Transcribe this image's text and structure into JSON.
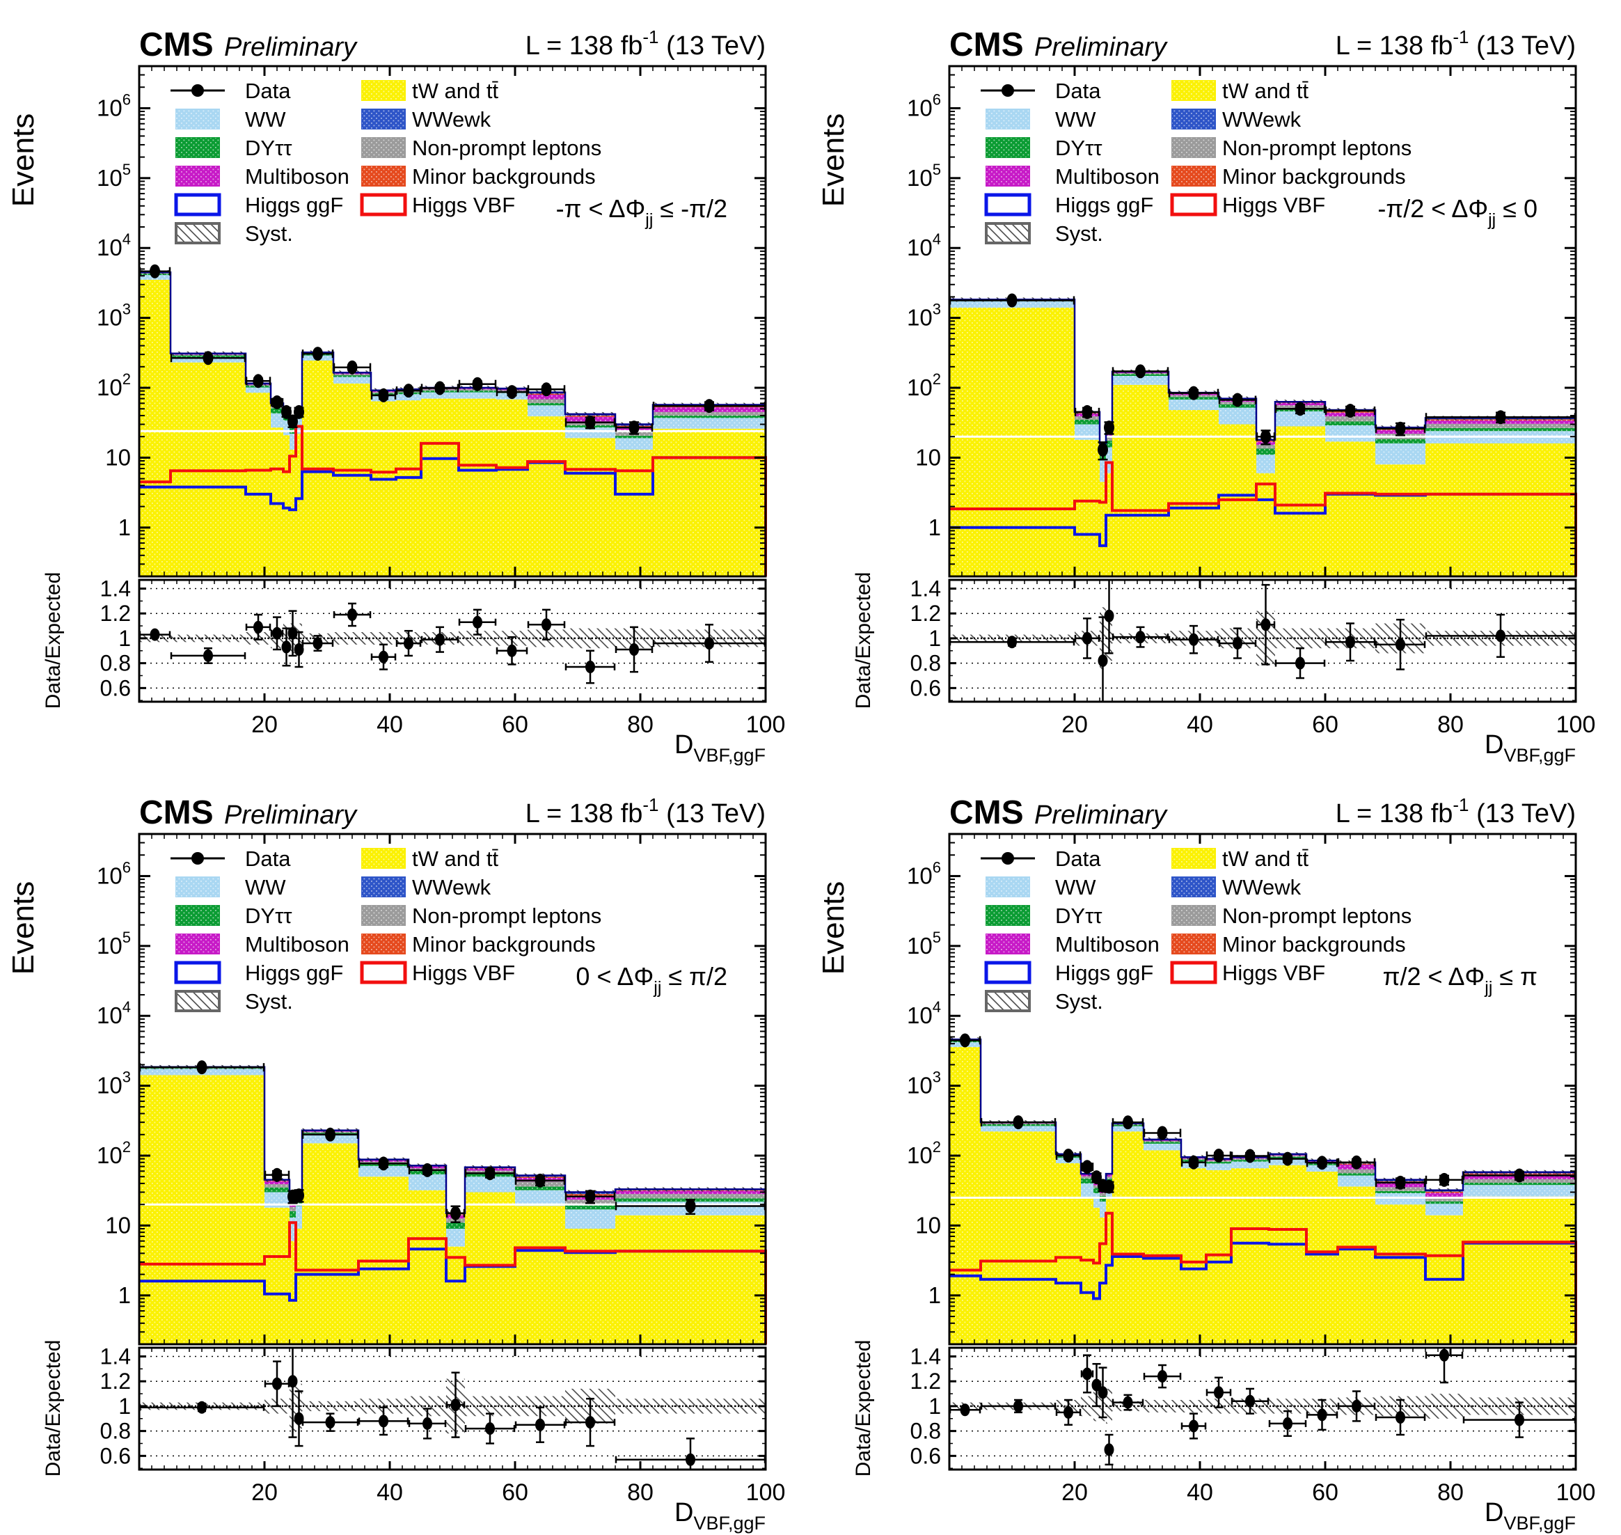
{
  "header": {
    "experiment": "CMS",
    "label": "Preliminary",
    "lumi_prefix": "L = 138 fb",
    "lumi_sup": "-1",
    "lumi_suffix": " (13 TeV)"
  },
  "axes": {
    "y_title_main": "Events",
    "y_title_ratio": "Data/Expected",
    "x_title_base": "D",
    "x_title_sub": "VBF,ggF",
    "x_ticks": [
      20,
      40,
      60,
      80,
      100
    ],
    "y_ticks": [
      {
        "v": 1,
        "t": "1"
      },
      {
        "v": 10,
        "t": "10"
      },
      {
        "v": 100,
        "t": "10",
        "e": "2"
      },
      {
        "v": 1000,
        "t": "10",
        "e": "3"
      },
      {
        "v": 10000,
        "t": "10",
        "e": "4"
      },
      {
        "v": 100000,
        "t": "10",
        "e": "5"
      },
      {
        "v": 1000000,
        "t": "10",
        "e": "6"
      }
    ],
    "ratio_ticks": [
      0.6,
      0.8,
      1,
      1.2,
      1.4
    ]
  },
  "colors": {
    "tw_tt": "#FBF104",
    "ww": "#A9D7F2",
    "dytt": "#0B9C33",
    "nonprompt": "#9B9B9B",
    "multiboson": "#C71AC7",
    "minor": "#E54A1E",
    "wwewk": "#2E55C8",
    "higgs_ggf": "#0A16E8",
    "higgs_vbf": "#F20F0F",
    "stack_outline": "#00008B",
    "frame": "#000000",
    "data_marker": "#000000"
  },
  "legend": {
    "left": [
      {
        "key": "data",
        "label": "Data",
        "type": "marker"
      },
      {
        "key": "ww",
        "label": "WW",
        "type": "fill"
      },
      {
        "key": "dytt",
        "label": "DYττ",
        "type": "fill"
      },
      {
        "key": "multiboson",
        "label": "Multiboson",
        "type": "fill"
      },
      {
        "key": "higgs_ggf",
        "label": "Higgs ggF",
        "type": "line"
      },
      {
        "key": "syst",
        "label": "Syst.",
        "type": "hatch"
      }
    ],
    "right": [
      {
        "key": "tw_tt",
        "label": "tW and tt̄",
        "type": "fill"
      },
      {
        "key": "wwewk",
        "label": "WWewk",
        "type": "fill"
      },
      {
        "key": "nonprompt",
        "label": "Non-prompt leptons",
        "type": "fill"
      },
      {
        "key": "minor",
        "label": "Minor backgrounds",
        "type": "fill"
      },
      {
        "key": "higgs_vbf",
        "label": "Higgs VBF",
        "type": "line"
      }
    ]
  },
  "chart_data": {
    "type": "bar",
    "subtype": "stacked-log-histogram-with-ratio",
    "x_range": [
      0,
      100
    ],
    "y_scale": "log",
    "y_range": [
      0.2,
      4000000
    ],
    "ratio_range": [
      0.49,
      1.47
    ],
    "stack_order": [
      "tw_tt",
      "ww",
      "dytt",
      "nonprompt",
      "multiboson",
      "minor",
      "wwewk"
    ],
    "panels": [
      {
        "id": "top-left",
        "annotation": {
          "pre": "-π < ΔΦ",
          "sub": "jj",
          "post": " ≤ -π/2"
        },
        "bin_edges": [
          0,
          5,
          17,
          21,
          23,
          24,
          25,
          26,
          31,
          37,
          41,
          45,
          51,
          57,
          62,
          68,
          76,
          82,
          100
        ],
        "stack": {
          "tw_tt": [
            3500,
            230,
            85,
            27,
            21,
            13,
            22,
            245,
            115,
            64,
            66,
            70,
            70,
            68,
            39,
            19,
            13,
            26
          ],
          "ww": [
            600,
            45,
            16,
            16,
            13,
            9,
            14,
            45,
            28,
            15,
            15,
            16,
            16,
            16,
            17,
            8,
            6,
            11
          ],
          "dytt": [
            190,
            15,
            6,
            8,
            6.5,
            4.5,
            6.5,
            14,
            8,
            4.5,
            5,
            5,
            5,
            5,
            4.5,
            2,
            1.6,
            3
          ],
          "nonprompt": [
            80,
            8,
            3.5,
            4,
            3.5,
            2.5,
            3.5,
            7,
            6,
            3.5,
            4,
            4,
            4,
            3.5,
            8,
            4,
            2.7,
            5
          ],
          "multiboson": [
            90,
            8,
            3,
            3.6,
            2.8,
            1.9,
            2.9,
            6,
            5.5,
            3.5,
            3.5,
            3.6,
            3.6,
            3.4,
            11,
            5.5,
            4,
            7.5
          ],
          "minor": [
            20,
            2,
            0.8,
            0.8,
            0.6,
            0.5,
            0.6,
            1.6,
            1.3,
            0.8,
            0.8,
            0.8,
            0.8,
            0.8,
            3,
            1.6,
            1.3,
            2.2
          ],
          "wwewk": [
            20,
            2,
            0.7,
            0.6,
            0.6,
            0.6,
            0.5,
            1.4,
            1.2,
            0.7,
            0.7,
            0.6,
            0.6,
            0.8,
            3.5,
            1.9,
            1.4,
            2.3
          ]
        },
        "data": [
          4640,
          267,
          125,
          62,
          45,
          33,
          45,
          307,
          196,
          78,
          91,
          99,
          113,
          87,
          95,
          32,
          27,
          55
        ],
        "higgs_ggf": [
          3.8,
          3.8,
          3.0,
          2.2,
          1.9,
          1.8,
          2.6,
          6.3,
          5.6,
          4.9,
          5.2,
          9.7,
          6.6,
          6.8,
          8.5,
          6.0,
          3.0,
          10
        ],
        "higgs_vbf": [
          4.5,
          6.5,
          6.6,
          6.9,
          6.3,
          10.5,
          28,
          6.9,
          6.6,
          6.2,
          6.9,
          16,
          7.8,
          7.2,
          8.8,
          6.8,
          6.5,
          10
        ],
        "ratio": [
          1.03,
          0.86,
          1.09,
          1.04,
          0.93,
          1.04,
          0.91,
          0.96,
          1.19,
          0.85,
          0.96,
          0.99,
          1.13,
          0.9,
          1.11,
          0.77,
          0.91,
          0.96
        ],
        "ratio_err": [
          0.02,
          0.06,
          0.1,
          0.13,
          0.15,
          0.18,
          0.14,
          0.06,
          0.09,
          0.1,
          0.1,
          0.1,
          0.1,
          0.11,
          0.12,
          0.13,
          0.18,
          0.15
        ],
        "syst_halfwidth": [
          0.03,
          0.03,
          0.05,
          0.08,
          0.12,
          0.12,
          0.12,
          0.04,
          0.05,
          0.05,
          0.05,
          0.05,
          0.06,
          0.06,
          0.07,
          0.08,
          0.08,
          0.07
        ],
        "white_line": 24
      },
      {
        "id": "top-right",
        "annotation": {
          "pre": "-π/2 < ΔΦ",
          "sub": "jj",
          "post": " ≤ 0"
        },
        "bin_edges": [
          0,
          20,
          24,
          25,
          26,
          35,
          43,
          49,
          52,
          60,
          68,
          76,
          100
        ],
        "stack": {
          "tw_tt": [
            1400,
            18,
            4.5,
            6,
            110,
            48,
            30,
            6,
            28,
            17,
            8,
            16
          ],
          "ww": [
            330,
            12,
            5,
            8,
            38,
            20,
            22,
            5,
            18,
            12,
            8,
            8
          ],
          "dytt": [
            35,
            5,
            2.2,
            3.5,
            9,
            6,
            6,
            2.5,
            5,
            4,
            2.5,
            2.5
          ],
          "nonprompt": [
            25,
            4,
            1.7,
            2.2,
            5,
            4.5,
            5,
            1.8,
            5,
            6,
            3.5,
            4
          ],
          "multiboson": [
            28,
            4,
            1.6,
            2.1,
            5,
            4,
            4.5,
            1.7,
            4.5,
            5,
            2.8,
            3.5
          ],
          "minor": [
            6,
            1,
            0.5,
            0.6,
            1.5,
            1.2,
            1.2,
            0.5,
            1.2,
            1.8,
            1,
            1.4
          ],
          "wwewk": [
            6,
            1,
            0.5,
            0.6,
            1.5,
            1.3,
            1.3,
            0.5,
            1.3,
            2.2,
            1.2,
            1.6
          ]
        },
        "data": [
          1780,
          45,
          13,
          27,
          172,
          84,
          67,
          20,
          50,
          47,
          26,
          38
        ],
        "higgs_ggf": [
          1.0,
          0.8,
          0.55,
          1.5,
          1.5,
          1.9,
          2.9,
          2.5,
          1.6,
          3.0,
          2.9,
          3.0
        ],
        "higgs_vbf": [
          1.85,
          2.4,
          2.3,
          8.5,
          1.75,
          2.2,
          2.5,
          4.2,
          2.1,
          3.1,
          3.0,
          3.0
        ],
        "ratio": [
          0.97,
          1.0,
          0.82,
          1.18,
          1.01,
          0.99,
          0.96,
          1.11,
          0.8,
          0.97,
          0.95,
          1.02
        ],
        "ratio_err": [
          0.03,
          0.16,
          0.35,
          0.3,
          0.08,
          0.11,
          0.12,
          0.32,
          0.12,
          0.15,
          0.2,
          0.17
        ],
        "syst_halfwidth": [
          0.03,
          0.06,
          0.25,
          0.18,
          0.04,
          0.06,
          0.08,
          0.22,
          0.08,
          0.08,
          0.12,
          0.06
        ],
        "white_line": 20
      },
      {
        "id": "bottom-left",
        "annotation": {
          "pre": "0 < ΔΦ",
          "sub": "jj",
          "post": " ≤ π/2"
        },
        "bin_edges": [
          0,
          20,
          24,
          25,
          26,
          35,
          43,
          49,
          52,
          60,
          68,
          76,
          100
        ],
        "stack": {
          "tw_tt": [
            1420,
            18,
            6,
            9,
            150,
            50,
            32,
            5,
            30,
            19,
            9,
            14
          ],
          "ww": [
            330,
            12,
            7,
            10,
            50,
            21,
            22,
            4,
            20,
            13,
            8,
            8
          ],
          "dytt": [
            35,
            5,
            3,
            4,
            12,
            6,
            6.5,
            2,
            5.5,
            4,
            2.5,
            2.5
          ],
          "nonprompt": [
            25,
            4,
            2.5,
            3,
            8,
            4.8,
            5.5,
            1.6,
            5.5,
            6.5,
            4,
            3.8
          ],
          "multiboson": [
            28,
            4,
            2.4,
            2.8,
            6,
            4,
            4.3,
            1.5,
            4.5,
            5.5,
            3.2,
            3
          ],
          "minor": [
            6,
            1,
            0.5,
            0.6,
            2,
            1,
            0.8,
            0.4,
            1.2,
            1.8,
            1.5,
            0.8
          ],
          "wwewk": [
            6,
            1,
            0.6,
            0.6,
            2,
            1.2,
            0.9,
            0.5,
            1.3,
            2.2,
            1.8,
            0.9
          ]
        },
        "data": [
          1835,
          53,
          26,
          27,
          200,
          77,
          62,
          15,
          56,
          44,
          26,
          19
        ],
        "higgs_ggf": [
          1.6,
          1.05,
          0.85,
          2.0,
          2.0,
          2.4,
          4.6,
          1.6,
          2.6,
          4.4,
          4.1,
          4.3
        ],
        "higgs_vbf": [
          2.8,
          3.6,
          11,
          2.3,
          2.3,
          3.1,
          6.5,
          3.5,
          2.7,
          4.8,
          4.3,
          4.3
        ],
        "ratio": [
          0.99,
          1.18,
          1.2,
          0.9,
          0.87,
          0.88,
          0.86,
          1.01,
          0.82,
          0.85,
          0.87,
          0.57
        ],
        "ratio_err": [
          0.03,
          0.18,
          0.45,
          0.22,
          0.07,
          0.11,
          0.12,
          0.26,
          0.12,
          0.14,
          0.19,
          0.17
        ],
        "syst_halfwidth": [
          0.03,
          0.06,
          0.22,
          0.18,
          0.04,
          0.06,
          0.08,
          0.22,
          0.08,
          0.08,
          0.14,
          0.06
        ],
        "white_line": 20
      },
      {
        "id": "bottom-right",
        "annotation": {
          "pre": "π/2 < ΔΦ",
          "sub": "jj",
          "post": " ≤ π"
        },
        "bin_edges": [
          0,
          5,
          17,
          21,
          23,
          24,
          25,
          26,
          31,
          37,
          41,
          45,
          51,
          57,
          62,
          68,
          76,
          82,
          100
        ],
        "stack": {
          "tw_tt": [
            3580,
            222,
            78,
            25,
            18,
            13,
            24,
            222,
            119,
            66,
            62,
            66,
            73,
            59,
            36,
            20,
            14,
            26
          ],
          "ww": [
            610,
            44,
            15,
            15,
            11,
            9,
            15,
            42,
            29,
            16,
            15,
            16,
            18,
            14,
            16,
            9,
            6.5,
            12
          ],
          "dytt": [
            195,
            15,
            5.5,
            7,
            5.5,
            4.5,
            7.5,
            13,
            8.5,
            5,
            4.7,
            5,
            5.3,
            4.5,
            4.2,
            2.2,
            1.7,
            3
          ],
          "nonprompt": [
            85,
            8,
            3,
            3.6,
            3.1,
            2.6,
            3.6,
            6.4,
            6,
            3.6,
            3.8,
            3.8,
            4.2,
            3.1,
            7.5,
            4.2,
            2.9,
            5.1
          ],
          "multiboson": [
            92,
            8,
            2.7,
            3.3,
            2.8,
            2.4,
            3.3,
            5.4,
            5.7,
            3.6,
            3.3,
            3.4,
            3.7,
            3,
            10.5,
            5.9,
            4.2,
            7.6
          ],
          "minor": [
            19,
            1.5,
            0.5,
            0.6,
            0.8,
            0.7,
            0.8,
            0.7,
            0.9,
            0.4,
            0.6,
            0.4,
            0.4,
            0.7,
            2.8,
            1.7,
            1.3,
            2
          ],
          "wwewk": [
            19,
            1.5,
            0.3,
            0.5,
            0.8,
            0.8,
            0.8,
            0.5,
            0.9,
            0.4,
            0.6,
            0.4,
            0.4,
            0.7,
            3,
            2,
            1.4,
            2.3
          ]
        },
        "data": [
          4460,
          300,
          100,
          69,
          49,
          37,
          36,
          299,
          211,
          80,
          100,
          99,
          90,
          79,
          80,
          41,
          45,
          52
        ],
        "higgs_ggf": [
          1.9,
          1.7,
          1.5,
          1.1,
          0.9,
          1.5,
          2.7,
          3.6,
          3.4,
          2.4,
          3.0,
          5.6,
          5.4,
          3.9,
          4.6,
          3.5,
          1.7,
          5.6
        ],
        "higgs_vbf": [
          2.3,
          3.1,
          3.5,
          3.2,
          2.9,
          5.5,
          15,
          3.9,
          3.7,
          3.0,
          3.8,
          9.0,
          8.8,
          4.2,
          4.9,
          3.9,
          3.7,
          5.8
        ],
        "ratio": [
          0.97,
          1.0,
          0.95,
          1.26,
          1.17,
          1.11,
          0.65,
          1.03,
          1.24,
          0.84,
          1.11,
          1.04,
          0.86,
          0.93,
          1.0,
          0.91,
          1.41,
          0.89
        ],
        "ratio_err": [
          0.02,
          0.05,
          0.1,
          0.15,
          0.17,
          0.2,
          0.12,
          0.06,
          0.09,
          0.1,
          0.12,
          0.1,
          0.1,
          0.12,
          0.12,
          0.14,
          0.22,
          0.14
        ],
        "syst_halfwidth": [
          0.03,
          0.03,
          0.05,
          0.08,
          0.12,
          0.12,
          0.14,
          0.04,
          0.05,
          0.05,
          0.06,
          0.06,
          0.06,
          0.06,
          0.07,
          0.08,
          0.1,
          0.07
        ],
        "white_line": 25
      }
    ]
  }
}
